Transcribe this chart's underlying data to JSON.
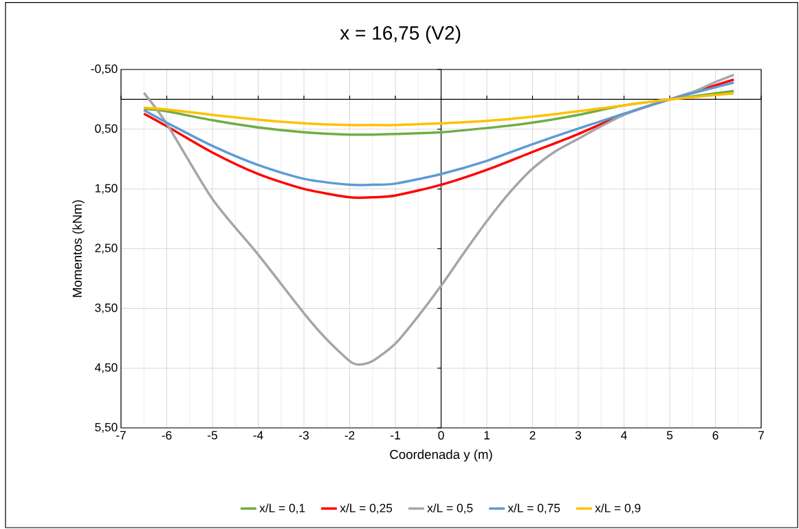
{
  "chart_data": {
    "type": "line",
    "title": "x = 16,75 (V2)",
    "xlabel": "Coordenada y (m)",
    "ylabel": "Momentos (kNm)",
    "x": [
      -6.5,
      -6,
      -5,
      -4,
      -3,
      -2,
      -1.5,
      -1,
      0,
      1,
      2,
      3,
      4,
      5,
      6.4
    ],
    "series": [
      {
        "name": "x/L = 0,1",
        "color": "#70ad47",
        "values": [
          0.16,
          0.2,
          0.35,
          0.47,
          0.55,
          0.59,
          0.59,
          0.58,
          0.55,
          0.48,
          0.39,
          0.26,
          0.1,
          0,
          -0.14
        ]
      },
      {
        "name": "x/L = 0,25",
        "color": "#ff0000",
        "values": [
          0.24,
          0.45,
          0.89,
          1.25,
          1.5,
          1.64,
          1.64,
          1.61,
          1.43,
          1.18,
          0.88,
          0.58,
          0.25,
          0,
          -0.33
        ]
      },
      {
        "name": "x/L = 0,5",
        "color": "#a5a5a5",
        "x": [
          -6.5,
          -6,
          -5,
          -4,
          -3,
          -2.5,
          -2,
          -1.8,
          -1.5,
          -1,
          -0.5,
          0,
          0.5,
          1,
          1.5,
          2,
          2.5,
          3,
          3.5,
          4,
          4.5,
          5,
          5.5,
          6,
          6.4
        ],
        "values": [
          -0.11,
          0.41,
          1.67,
          2.6,
          3.58,
          4.02,
          4.38,
          4.44,
          4.38,
          4.09,
          3.63,
          3.12,
          2.57,
          2.04,
          1.56,
          1.16,
          0.87,
          0.66,
          0.45,
          0.26,
          0.12,
          0,
          -0.12,
          -0.29,
          -0.41
        ]
      },
      {
        "name": "x/L = 0,75",
        "color": "#5b9bd5",
        "values": [
          0.18,
          0.39,
          0.78,
          1.1,
          1.33,
          1.43,
          1.43,
          1.41,
          1.25,
          1.03,
          0.75,
          0.49,
          0.24,
          0,
          -0.28
        ]
      },
      {
        "name": "x/L = 0,9",
        "color": "#ffc000",
        "values": [
          0.14,
          0.17,
          0.26,
          0.34,
          0.4,
          0.43,
          0.43,
          0.43,
          0.4,
          0.36,
          0.29,
          0.2,
          0.1,
          0,
          -0.1
        ]
      }
    ],
    "xlim": [
      -7,
      7
    ],
    "xticks": [
      -7,
      -6,
      -5,
      -4,
      -3,
      -2,
      -1,
      0,
      1,
      2,
      3,
      4,
      5,
      6,
      7
    ],
    "ylim": [
      5.5,
      -0.5
    ],
    "yticks": [
      {
        "value": -0.5,
        "label": "-0,50"
      },
      {
        "value": 0.5,
        "label": "0,50"
      },
      {
        "value": 1.5,
        "label": "1,50"
      },
      {
        "value": 2.5,
        "label": "2,50"
      },
      {
        "value": 3.5,
        "label": "3,50"
      },
      {
        "value": 4.5,
        "label": "4,50"
      },
      {
        "value": 5.5,
        "label": "5,50"
      }
    ],
    "grid": true,
    "legend": "bottom",
    "line_style": "solid"
  }
}
